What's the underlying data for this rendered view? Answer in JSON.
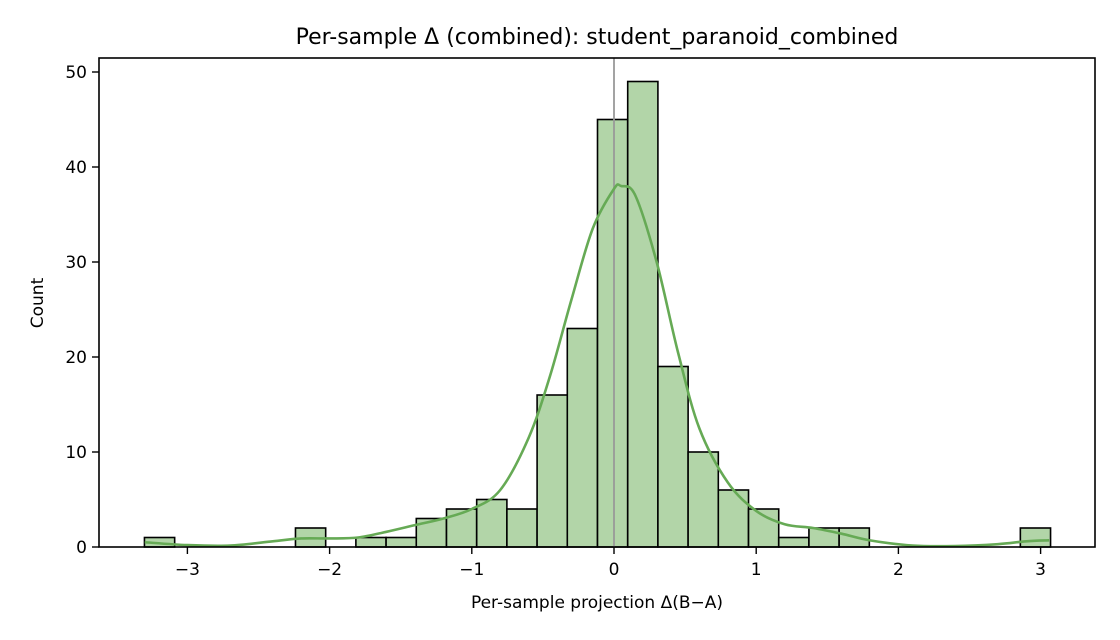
{
  "chart_data": {
    "type": "bar",
    "title": "Per-sample Δ (combined): student_paranoid_combined",
    "xlabel": "Per-sample projection Δ(B−A)",
    "ylabel": "Count",
    "xlim": [
      -3.62,
      3.39
    ],
    "ylim": [
      0,
      51.5
    ],
    "xticks": [
      -3,
      -2,
      -1,
      0,
      1,
      2,
      3
    ],
    "xtick_labels": [
      "−3",
      "−2",
      "−1",
      "0",
      "1",
      "2",
      "3"
    ],
    "yticks": [
      0,
      10,
      20,
      30,
      40,
      50
    ],
    "ytick_labels": [
      "0",
      "10",
      "20",
      "30",
      "40",
      "50"
    ],
    "grid": false,
    "legend": null,
    "bin_start": -3.302,
    "bin_width": 0.2124,
    "counts": [
      1,
      0,
      0,
      0,
      0,
      2,
      0,
      1,
      1,
      3,
      4,
      5,
      4,
      16,
      23,
      45,
      49,
      19,
      10,
      6,
      4,
      1,
      2,
      2,
      0,
      0,
      0,
      0,
      0,
      2
    ],
    "vline_x": 0,
    "kde": {
      "x": [
        -3.3,
        -3.0,
        -2.7,
        -2.4,
        -2.2,
        -2.0,
        -1.8,
        -1.6,
        -1.4,
        -1.2,
        -1.0,
        -0.8,
        -0.6,
        -0.45,
        -0.3,
        -0.15,
        0.0,
        0.05,
        0.15,
        0.3,
        0.45,
        0.6,
        0.8,
        1.0,
        1.2,
        1.4,
        1.6,
        1.8,
        2.1,
        2.4,
        2.7,
        2.9,
        3.06
      ],
      "y": [
        0.5,
        0.2,
        0.15,
        0.6,
        0.9,
        0.9,
        1.0,
        1.6,
        2.3,
        3.0,
        4.0,
        6.0,
        11.5,
        18.0,
        26.0,
        33.5,
        37.7,
        38.0,
        37.0,
        30.0,
        20.5,
        12.5,
        6.8,
        3.8,
        2.4,
        2.0,
        1.4,
        0.7,
        0.15,
        0.1,
        0.3,
        0.6,
        0.7
      ]
    },
    "colors": {
      "bar_fill": "#b2d5a8",
      "bar_edge": "#000000",
      "kde": "#66aa55",
      "vline": "#999999"
    }
  }
}
